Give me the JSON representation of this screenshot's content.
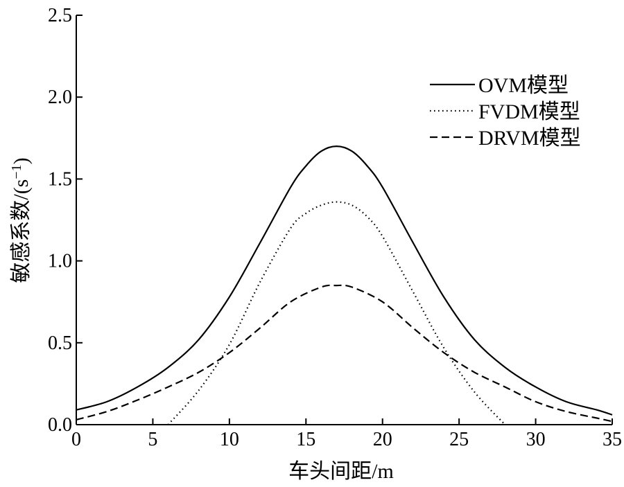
{
  "chart_data": {
    "type": "line",
    "title": "",
    "xlabel": "车头间距/m",
    "ylabel_main": "敏感系数/(s",
    "ylabel_sup": "−1",
    "ylabel_close": ")",
    "xlim": [
      0,
      35
    ],
    "ylim": [
      0,
      2.5
    ],
    "xticks": [
      0,
      5,
      10,
      15,
      20,
      25,
      30,
      35
    ],
    "xtick_labels": [
      "0",
      "5",
      "10",
      "15",
      "20",
      "25",
      "30",
      "35"
    ],
    "yticks": [
      0,
      0.5,
      1.0,
      1.5,
      2.0,
      2.5
    ],
    "ytick_labels": [
      "0.0",
      "0.5",
      "1.0",
      "1.5",
      "2.0",
      "2.5"
    ],
    "grid": false,
    "legend_position": "top-right",
    "series": [
      {
        "name": "OVM模型",
        "style": "solid",
        "x": [
          0,
          2,
          4,
          6,
          8,
          10,
          12,
          14,
          15,
          16,
          17,
          18,
          19,
          20,
          22,
          24,
          26,
          28,
          30,
          32,
          34,
          35
        ],
        "y": [
          0.09,
          0.14,
          0.23,
          0.35,
          0.52,
          0.78,
          1.11,
          1.45,
          1.58,
          1.67,
          1.7,
          1.67,
          1.58,
          1.45,
          1.11,
          0.78,
          0.52,
          0.35,
          0.23,
          0.14,
          0.09,
          0.06
        ]
      },
      {
        "name": "FVDM模型",
        "style": "dotted",
        "x": [
          6,
          8,
          10,
          12,
          14,
          15,
          16,
          17,
          18,
          19,
          20,
          22,
          24,
          26,
          28
        ],
        "y": [
          0.0,
          0.21,
          0.49,
          0.87,
          1.2,
          1.29,
          1.34,
          1.36,
          1.34,
          1.27,
          1.15,
          0.81,
          0.47,
          0.2,
          0.0
        ]
      },
      {
        "name": "DRVM模型",
        "style": "dashed",
        "x": [
          0,
          2,
          4,
          6,
          8,
          10,
          12,
          14,
          16,
          17,
          18,
          20,
          22,
          24,
          26,
          28,
          30,
          32,
          34,
          35
        ],
        "y": [
          0.03,
          0.08,
          0.15,
          0.23,
          0.32,
          0.44,
          0.59,
          0.75,
          0.84,
          0.85,
          0.84,
          0.75,
          0.59,
          0.44,
          0.32,
          0.23,
          0.14,
          0.08,
          0.04,
          0.02
        ]
      }
    ]
  }
}
